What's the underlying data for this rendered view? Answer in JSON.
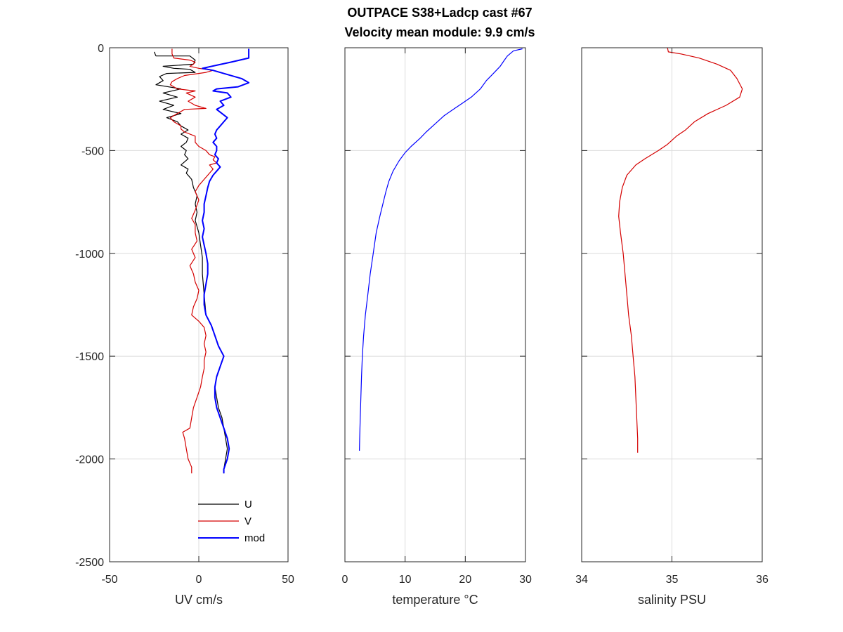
{
  "title_line1": "OUTPACE S38+Ladcp cast #67",
  "title_line2": "Velocity mean module:  9.9 cm/s",
  "chart_data": [
    {
      "type": "line",
      "xlabel": "UV cm/s",
      "xlim": [
        -50,
        50
      ],
      "ylim": [
        -2500,
        0
      ],
      "xticks": [
        "-50",
        "0",
        "50"
      ],
      "yticks": [
        "0",
        "-500",
        "-1000",
        "-1500",
        "-2000",
        "-2500"
      ],
      "grid": true,
      "legend": {
        "placement": "bottom-right",
        "entries": [
          "U",
          "V",
          "mod"
        ]
      },
      "series": [
        {
          "name": "U",
          "color": "#000000",
          "points": [
            [
              -25,
              -20
            ],
            [
              -24,
              -40
            ],
            [
              -5,
              -40
            ],
            [
              -2,
              -60
            ],
            [
              -3,
              -80
            ],
            [
              -20,
              -90
            ],
            [
              -14,
              -100
            ],
            [
              -5,
              -105
            ],
            [
              -2,
              -120
            ],
            [
              -18,
              -125
            ],
            [
              -22,
              -140
            ],
            [
              -20,
              -160
            ],
            [
              -24,
              -180
            ],
            [
              -10,
              -200
            ],
            [
              -20,
              -220
            ],
            [
              -12,
              -240
            ],
            [
              -22,
              -260
            ],
            [
              -14,
              -280
            ],
            [
              -20,
              -300
            ],
            [
              -10,
              -320
            ],
            [
              -18,
              -340
            ],
            [
              -12,
              -360
            ],
            [
              -10,
              -380
            ],
            [
              -6,
              -400
            ],
            [
              -10,
              -420
            ],
            [
              -6,
              -440
            ],
            [
              -7,
              -460
            ],
            [
              -10,
              -480
            ],
            [
              -7,
              -500
            ],
            [
              -8,
              -520
            ],
            [
              -6,
              -540
            ],
            [
              -10,
              -570
            ],
            [
              -6,
              -590
            ],
            [
              -7,
              -610
            ],
            [
              -4,
              -640
            ],
            [
              -3,
              -680
            ],
            [
              -1,
              -720
            ],
            [
              -2,
              -760
            ],
            [
              -1,
              -800
            ],
            [
              -2,
              -840
            ],
            [
              -1,
              -870
            ],
            [
              0,
              -900
            ],
            [
              1,
              -960
            ],
            [
              2,
              -1020
            ],
            [
              2,
              -1100
            ],
            [
              3,
              -1200
            ],
            [
              4,
              -1300
            ],
            [
              7,
              -1350
            ],
            [
              9,
              -1400
            ],
            [
              11,
              -1450
            ],
            [
              14,
              -1500
            ],
            [
              12,
              -1550
            ],
            [
              10,
              -1600
            ],
            [
              9,
              -1650
            ],
            [
              10,
              -1700
            ],
            [
              11,
              -1750
            ],
            [
              13,
              -1800
            ],
            [
              14,
              -1850
            ],
            [
              15,
              -1900
            ],
            [
              16,
              -1950
            ],
            [
              15,
              -2000
            ],
            [
              14,
              -2050
            ],
            [
              14,
              -2070
            ]
          ]
        },
        {
          "name": "V",
          "color": "#d40000",
          "points": [
            [
              -15,
              -5
            ],
            [
              -15,
              -30
            ],
            [
              -14,
              -50
            ],
            [
              -5,
              -60
            ],
            [
              -2,
              -70
            ],
            [
              -3,
              -80
            ],
            [
              -5,
              -90
            ],
            [
              0,
              -100
            ],
            [
              8,
              -110
            ],
            [
              4,
              -120
            ],
            [
              -8,
              -135
            ],
            [
              -12,
              -150
            ],
            [
              -15,
              -165
            ],
            [
              -16,
              -180
            ],
            [
              -12,
              -200
            ],
            [
              -2,
              -210
            ],
            [
              -7,
              -220
            ],
            [
              -2,
              -240
            ],
            [
              -6,
              -260
            ],
            [
              -2,
              -280
            ],
            [
              4,
              -295
            ],
            [
              -8,
              -300
            ],
            [
              -12,
              -320
            ],
            [
              -16,
              -340
            ],
            [
              -14,
              -360
            ],
            [
              -10,
              -380
            ],
            [
              -10,
              -395
            ],
            [
              -8,
              -410
            ],
            [
              -2,
              -430
            ],
            [
              -2,
              -460
            ],
            [
              0,
              -480
            ],
            [
              4,
              -500
            ],
            [
              6,
              -520
            ],
            [
              9,
              -530
            ],
            [
              8,
              -545
            ],
            [
              10,
              -560
            ],
            [
              6,
              -570
            ],
            [
              8,
              -590
            ],
            [
              6,
              -610
            ],
            [
              3,
              -640
            ],
            [
              0,
              -670
            ],
            [
              -2,
              -700
            ],
            [
              0,
              -740
            ],
            [
              -2,
              -790
            ],
            [
              -4,
              -830
            ],
            [
              -2,
              -860
            ],
            [
              -2,
              -900
            ],
            [
              -1,
              -940
            ],
            [
              -4,
              -980
            ],
            [
              -2,
              -1020
            ],
            [
              -5,
              -1060
            ],
            [
              -3,
              -1100
            ],
            [
              -2,
              -1140
            ],
            [
              0,
              -1180
            ],
            [
              -1,
              -1220
            ],
            [
              -3,
              -1260
            ],
            [
              -4,
              -1300
            ],
            [
              0,
              -1330
            ],
            [
              3,
              -1360
            ],
            [
              4,
              -1400
            ],
            [
              3,
              -1440
            ],
            [
              4,
              -1480
            ],
            [
              3,
              -1520
            ],
            [
              3,
              -1560
            ],
            [
              2,
              -1600
            ],
            [
              1,
              -1650
            ],
            [
              -1,
              -1700
            ],
            [
              -3,
              -1750
            ],
            [
              -4,
              -1800
            ],
            [
              -5,
              -1850
            ],
            [
              -9,
              -1870
            ],
            [
              -8,
              -1900
            ],
            [
              -7,
              -1950
            ],
            [
              -6,
              -2000
            ],
            [
              -4,
              -2040
            ],
            [
              -4,
              -2070
            ]
          ]
        },
        {
          "name": "mod",
          "color": "#0000ff",
          "points": [
            [
              28,
              -5
            ],
            [
              28,
              -50
            ],
            [
              18,
              -70
            ],
            [
              10,
              -85
            ],
            [
              2,
              -100
            ],
            [
              8,
              -110
            ],
            [
              16,
              -130
            ],
            [
              24,
              -150
            ],
            [
              28,
              -170
            ],
            [
              22,
              -190
            ],
            [
              10,
              -200
            ],
            [
              8,
              -210
            ],
            [
              16,
              -220
            ],
            [
              18,
              -240
            ],
            [
              12,
              -260
            ],
            [
              14,
              -280
            ],
            [
              10,
              -300
            ],
            [
              13,
              -320
            ],
            [
              16,
              -340
            ],
            [
              14,
              -360
            ],
            [
              12,
              -380
            ],
            [
              10,
              -400
            ],
            [
              9,
              -420
            ],
            [
              10,
              -440
            ],
            [
              8,
              -460
            ],
            [
              10,
              -480
            ],
            [
              10,
              -500
            ],
            [
              9,
              -520
            ],
            [
              11,
              -540
            ],
            [
              10,
              -560
            ],
            [
              12,
              -580
            ],
            [
              10,
              -600
            ],
            [
              8,
              -620
            ],
            [
              6,
              -650
            ],
            [
              5,
              -680
            ],
            [
              4,
              -720
            ],
            [
              3,
              -760
            ],
            [
              3,
              -800
            ],
            [
              2,
              -840
            ],
            [
              3,
              -880
            ],
            [
              2,
              -920
            ],
            [
              3,
              -960
            ],
            [
              4,
              -1000
            ],
            [
              5,
              -1050
            ],
            [
              5,
              -1100
            ],
            [
              4,
              -1150
            ],
            [
              3,
              -1200
            ],
            [
              3,
              -1250
            ],
            [
              4,
              -1300
            ],
            [
              7,
              -1350
            ],
            [
              9,
              -1400
            ],
            [
              11,
              -1450
            ],
            [
              14,
              -1500
            ],
            [
              12,
              -1550
            ],
            [
              10,
              -1600
            ],
            [
              9,
              -1650
            ],
            [
              9,
              -1700
            ],
            [
              10,
              -1750
            ],
            [
              12,
              -1800
            ],
            [
              14,
              -1850
            ],
            [
              16,
              -1900
            ],
            [
              17,
              -1950
            ],
            [
              16,
              -2000
            ],
            [
              14,
              -2050
            ],
            [
              14,
              -2070
            ]
          ]
        }
      ]
    },
    {
      "type": "line",
      "xlabel": "temperature °C",
      "xlim": [
        0,
        30
      ],
      "ylim": [
        -2500,
        0
      ],
      "xticks": [
        "0",
        "10",
        "20",
        "30"
      ],
      "grid": true,
      "series": [
        {
          "color": "#0000ff",
          "points": [
            [
              29.5,
              -5
            ],
            [
              28,
              -15
            ],
            [
              27,
              -40
            ],
            [
              26.5,
              -60
            ],
            [
              25.8,
              -90
            ],
            [
              24.5,
              -130
            ],
            [
              23.5,
              -160
            ],
            [
              22.5,
              -200
            ],
            [
              21,
              -240
            ],
            [
              19.5,
              -270
            ],
            [
              18,
              -300
            ],
            [
              16.5,
              -330
            ],
            [
              15,
              -370
            ],
            [
              13.5,
              -410
            ],
            [
              12.5,
              -440
            ],
            [
              11,
              -480
            ],
            [
              10,
              -510
            ],
            [
              9,
              -550
            ],
            [
              8,
              -600
            ],
            [
              7.3,
              -650
            ],
            [
              6.8,
              -700
            ],
            [
              6.3,
              -760
            ],
            [
              5.8,
              -820
            ],
            [
              5.2,
              -900
            ],
            [
              4.7,
              -1000
            ],
            [
              4.2,
              -1100
            ],
            [
              3.8,
              -1200
            ],
            [
              3.4,
              -1300
            ],
            [
              3.1,
              -1400
            ],
            [
              2.9,
              -1500
            ],
            [
              2.75,
              -1600
            ],
            [
              2.65,
              -1700
            ],
            [
              2.55,
              -1800
            ],
            [
              2.45,
              -1900
            ],
            [
              2.4,
              -1960
            ]
          ]
        }
      ]
    },
    {
      "type": "line",
      "xlabel": "salinity PSU",
      "xlim": [
        34,
        36
      ],
      "ylim": [
        -2500,
        0
      ],
      "xticks": [
        "34",
        "35",
        "36"
      ],
      "grid": true,
      "series": [
        {
          "color": "#d40000",
          "points": [
            [
              34.95,
              0
            ],
            [
              34.96,
              -20
            ],
            [
              35.1,
              -30
            ],
            [
              35.3,
              -50
            ],
            [
              35.5,
              -80
            ],
            [
              35.65,
              -110
            ],
            [
              35.72,
              -150
            ],
            [
              35.78,
              -200
            ],
            [
              35.75,
              -240
            ],
            [
              35.6,
              -280
            ],
            [
              35.4,
              -320
            ],
            [
              35.25,
              -360
            ],
            [
              35.15,
              -400
            ],
            [
              35.05,
              -430
            ],
            [
              34.95,
              -470
            ],
            [
              34.85,
              -500
            ],
            [
              34.7,
              -540
            ],
            [
              34.6,
              -570
            ],
            [
              34.5,
              -620
            ],
            [
              34.45,
              -680
            ],
            [
              34.42,
              -750
            ],
            [
              34.41,
              -820
            ],
            [
              34.43,
              -900
            ],
            [
              34.46,
              -1000
            ],
            [
              34.48,
              -1100
            ],
            [
              34.5,
              -1200
            ],
            [
              34.52,
              -1300
            ],
            [
              34.55,
              -1400
            ],
            [
              34.57,
              -1500
            ],
            [
              34.59,
              -1600
            ],
            [
              34.6,
              -1700
            ],
            [
              34.61,
              -1800
            ],
            [
              34.62,
              -1900
            ],
            [
              34.62,
              -1970
            ]
          ]
        }
      ]
    }
  ]
}
